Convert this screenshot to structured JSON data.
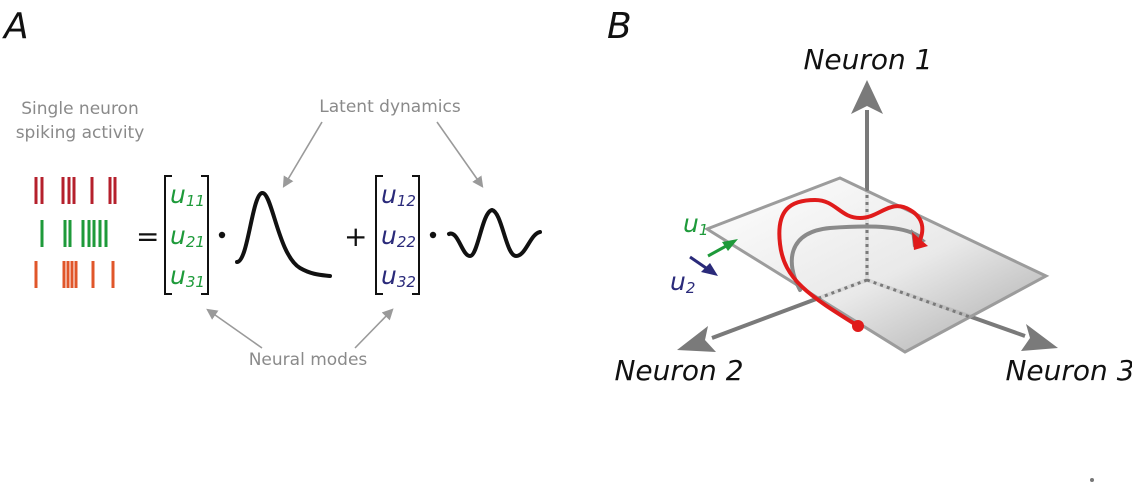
{
  "panels": {
    "a": {
      "label": "A",
      "spiking_label_line1": "Single neuron",
      "spiking_label_line2": "spiking activity",
      "latent_label": "Latent dynamics",
      "modes_label": "Neural modes",
      "equals": "=",
      "plus": "+",
      "mode1": [
        {
          "base": "u",
          "sub": "11"
        },
        {
          "base": "u",
          "sub": "21"
        },
        {
          "base": "u",
          "sub": "31"
        }
      ],
      "mode2": [
        {
          "base": "u",
          "sub": "12"
        },
        {
          "base": "u",
          "sub": "22"
        },
        {
          "base": "u",
          "sub": "32"
        }
      ]
    },
    "b": {
      "label": "B",
      "axis1": "Neuron 1",
      "axis2": "Neuron 2",
      "axis3": "Neuron 3",
      "u1": {
        "base": "u",
        "sub": "1"
      },
      "u2": {
        "base": "u",
        "sub": "2"
      }
    }
  },
  "colors": {
    "row1": "#b5202c",
    "row2": "#1e9a3a",
    "row3": "#e0562a",
    "mode1_text": "#1e9a3a",
    "mode2_text": "#2a2a7a",
    "trajectory": "#e01b1b",
    "axis": "#7a7a7a",
    "annotation": "#8a8a8a"
  }
}
